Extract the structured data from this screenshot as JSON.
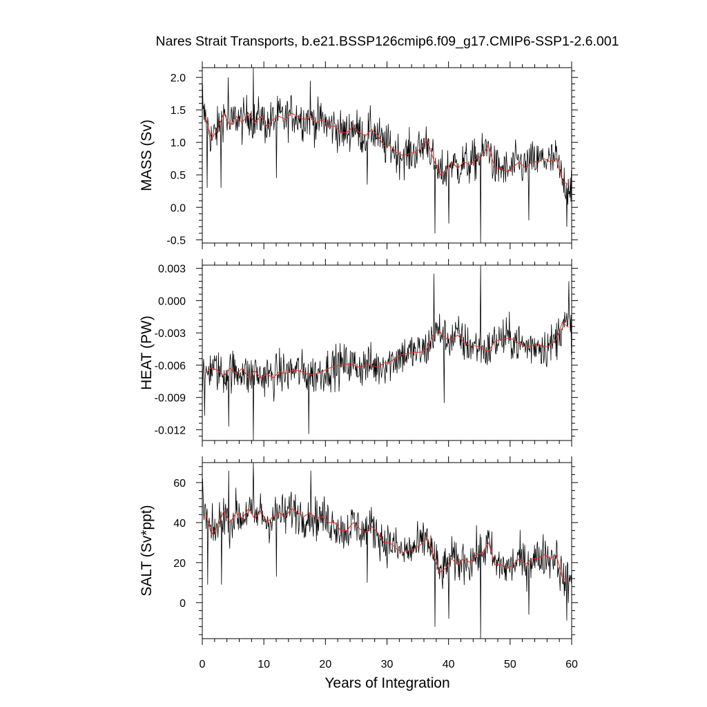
{
  "chart_data": {
    "type": "line",
    "title": "Nares Strait Transports, b.e21.BSSP126cmip6.f09_g17.CMIP6-SSP1-2.6.001",
    "xlabel": "Years of Integration",
    "xlim": [
      0,
      60
    ],
    "xticks": [
      0,
      10,
      20,
      30,
      40,
      50,
      60
    ],
    "xtick_labels": [
      "0",
      "10",
      "20",
      "30",
      "40",
      "50",
      "60"
    ],
    "grid": false,
    "colors": {
      "monthly": "#000000",
      "annual": "#e8332a"
    },
    "panels": [
      {
        "ylabel": "MASS (Sv)",
        "ylim": [
          -0.55,
          2.15
        ],
        "yticks": [
          -0.5,
          0.0,
          0.5,
          1.0,
          1.5,
          2.0
        ],
        "ytick_labels": [
          "-0.5",
          "0.0",
          "0.5",
          "1.0",
          "1.5",
          "2.0"
        ],
        "annual_x": [
          0.5,
          1.5,
          2.5,
          3.5,
          4.5,
          5.5,
          6.5,
          7.5,
          8.5,
          9.5,
          10.5,
          11.5,
          12.5,
          13.5,
          14.5,
          15.5,
          16.5,
          17.5,
          18.5,
          19.5,
          20.5,
          21.5,
          22.5,
          23.5,
          24.5,
          25.5,
          26.5,
          27.5,
          28.5,
          29.5,
          30.5,
          31.5,
          32.5,
          33.5,
          34.5,
          35.5,
          36.5,
          37.5,
          38.5,
          39.5,
          40.5,
          41.5,
          42.5,
          43.5,
          44.5,
          45.5,
          46.5,
          47.5,
          48.5,
          49.5,
          50.5,
          51.5,
          52.5,
          53.5,
          54.5,
          55.5,
          56.5,
          57.5,
          58.5,
          59.5
        ],
        "annual_y": [
          1.4,
          1.05,
          1.2,
          1.45,
          1.25,
          1.4,
          1.3,
          1.45,
          1.3,
          1.4,
          1.25,
          1.35,
          1.4,
          1.35,
          1.45,
          1.4,
          1.35,
          1.4,
          1.3,
          1.35,
          1.25,
          1.25,
          1.15,
          1.15,
          1.25,
          1.15,
          1.1,
          1.2,
          1.1,
          0.95,
          0.95,
          0.85,
          0.8,
          0.82,
          0.85,
          0.9,
          1.05,
          0.75,
          0.5,
          0.55,
          0.7,
          0.6,
          0.7,
          0.65,
          0.75,
          0.8,
          0.95,
          0.6,
          0.6,
          0.55,
          0.62,
          0.7,
          0.6,
          0.7,
          0.7,
          0.75,
          0.7,
          0.75,
          0.4,
          0.35
        ],
        "spikes": [
          [
            0.0,
            1.9
          ],
          [
            0.8,
            0.3
          ],
          [
            3.0,
            0.3
          ],
          [
            4.2,
            2.0
          ],
          [
            8.3,
            2.15
          ],
          [
            12.0,
            0.45
          ],
          [
            17.5,
            1.95
          ],
          [
            26.8,
            0.35
          ],
          [
            37.8,
            -0.4
          ],
          [
            40.0,
            -0.25
          ],
          [
            45.2,
            -0.55
          ],
          [
            53.0,
            -0.2
          ],
          [
            59.2,
            -0.3
          ]
        ]
      },
      {
        "ylabel": "HEAT (PW)",
        "ylim": [
          -0.013,
          0.0033
        ],
        "yticks": [
          -0.012,
          -0.009,
          -0.006,
          -0.003,
          0.0,
          0.003
        ],
        "ytick_labels": [
          "-0.012",
          "-0.009",
          "-0.006",
          "-0.003",
          "0.000",
          "0.003"
        ],
        "annual_x": [
          0.5,
          1.5,
          2.5,
          3.5,
          4.5,
          5.5,
          6.5,
          7.5,
          8.5,
          9.5,
          10.5,
          11.5,
          12.5,
          13.5,
          14.5,
          15.5,
          16.5,
          17.5,
          18.5,
          19.5,
          20.5,
          21.5,
          22.5,
          23.5,
          24.5,
          25.5,
          26.5,
          27.5,
          28.5,
          29.5,
          30.5,
          31.5,
          32.5,
          33.5,
          34.5,
          35.5,
          36.5,
          37.5,
          38.5,
          39.5,
          40.5,
          41.5,
          42.5,
          43.5,
          44.5,
          45.5,
          46.5,
          47.5,
          48.5,
          49.5,
          50.5,
          51.5,
          52.5,
          53.5,
          54.5,
          55.5,
          56.5,
          57.5,
          58.5,
          59.5
        ],
        "annual_y": [
          -0.0068,
          -0.0062,
          -0.0065,
          -0.007,
          -0.0063,
          -0.0068,
          -0.0063,
          -0.0072,
          -0.0065,
          -0.0072,
          -0.0068,
          -0.0072,
          -0.0066,
          -0.0068,
          -0.0065,
          -0.0065,
          -0.0067,
          -0.0069,
          -0.0068,
          -0.0066,
          -0.0063,
          -0.0061,
          -0.006,
          -0.0059,
          -0.006,
          -0.0062,
          -0.006,
          -0.006,
          -0.0062,
          -0.0058,
          -0.0057,
          -0.0053,
          -0.005,
          -0.0049,
          -0.0048,
          -0.0048,
          -0.0045,
          -0.0032,
          -0.0028,
          -0.0035,
          -0.0036,
          -0.0032,
          -0.0039,
          -0.0042,
          -0.0042,
          -0.0045,
          -0.0047,
          -0.0038,
          -0.0036,
          -0.0035,
          -0.0036,
          -0.004,
          -0.0043,
          -0.0042,
          -0.004,
          -0.0043,
          -0.0042,
          -0.0036,
          -0.002,
          -0.0025
        ],
        "spikes": [
          [
            0.4,
            -0.0107
          ],
          [
            4.3,
            -0.0117
          ],
          [
            8.3,
            -0.013
          ],
          [
            17.3,
            -0.0124
          ],
          [
            37.6,
            0.0025
          ],
          [
            39.3,
            -0.0095
          ],
          [
            45.2,
            0.0033
          ],
          [
            59.5,
            0.0018
          ]
        ]
      },
      {
        "ylabel": "SALT (Sv*ppt)",
        "ylim": [
          -18,
          70
        ],
        "yticks": [
          0,
          20,
          40,
          60
        ],
        "ytick_labels": [
          "0",
          "20",
          "40",
          "60"
        ],
        "annual_x": [
          0.5,
          1.5,
          2.5,
          3.5,
          4.5,
          5.5,
          6.5,
          7.5,
          8.5,
          9.5,
          10.5,
          11.5,
          12.5,
          13.5,
          14.5,
          15.5,
          16.5,
          17.5,
          18.5,
          19.5,
          20.5,
          21.5,
          22.5,
          23.5,
          24.5,
          25.5,
          26.5,
          27.5,
          28.5,
          29.5,
          30.5,
          31.5,
          32.5,
          33.5,
          34.5,
          35.5,
          36.5,
          37.5,
          38.5,
          39.5,
          40.5,
          41.5,
          42.5,
          43.5,
          44.5,
          45.5,
          46.5,
          47.5,
          48.5,
          49.5,
          50.5,
          51.5,
          52.5,
          53.5,
          54.5,
          55.5,
          56.5,
          57.5,
          58.5,
          59.5
        ],
        "annual_y": [
          45,
          34,
          38,
          46,
          40,
          45,
          42,
          47,
          42,
          46,
          40,
          43,
          45,
          43,
          47,
          45,
          43,
          45,
          42,
          43,
          40,
          40,
          36,
          36,
          40,
          37,
          35,
          38,
          35,
          30,
          30,
          27,
          25,
          26,
          27,
          29,
          33,
          24,
          15,
          17,
          22,
          19,
          22,
          20,
          24,
          25,
          30,
          19,
          19,
          17,
          19,
          22,
          19,
          22,
          22,
          24,
          22,
          24,
          12,
          11
        ],
        "spikes": [
          [
            0.0,
            62
          ],
          [
            0.9,
            9
          ],
          [
            3.1,
            9
          ],
          [
            4.3,
            66
          ],
          [
            8.3,
            70
          ],
          [
            12.0,
            13
          ],
          [
            17.6,
            66
          ],
          [
            26.8,
            10
          ],
          [
            37.8,
            -12
          ],
          [
            40.0,
            -8
          ],
          [
            45.2,
            -18
          ],
          [
            53.0,
            -6
          ],
          [
            59.2,
            -9
          ]
        ]
      }
    ]
  }
}
